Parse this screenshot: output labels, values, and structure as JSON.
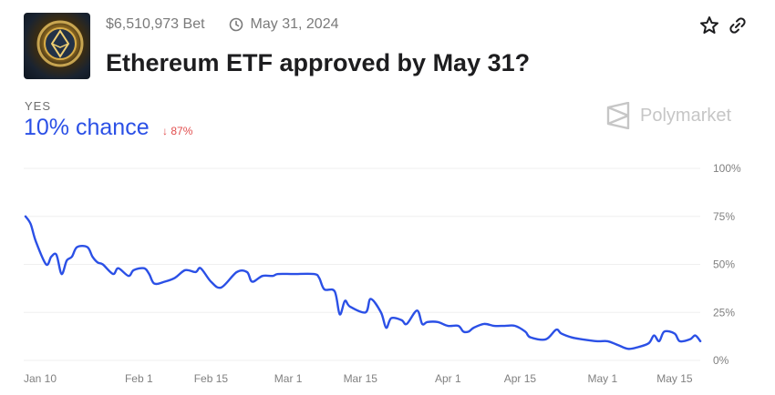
{
  "header": {
    "volume": "$6,510,973 Bet",
    "end_date": "May 31, 2024",
    "title": "Ethereum ETF approved by May 31?",
    "icons": {
      "clock": "clock-icon",
      "star": "star-icon",
      "link": "link-icon"
    }
  },
  "outcome": {
    "label": "YES",
    "chance": "10% chance",
    "change": "87%",
    "change_direction": "down",
    "change_color": "#e14d4d"
  },
  "brand": {
    "name": "Polymarket"
  },
  "colors": {
    "line": "#2b50e6",
    "grid": "#efefef",
    "axis_text": "#808080"
  },
  "chart_data": {
    "type": "line",
    "title": "",
    "xlabel": "",
    "ylabel": "",
    "ylim": [
      0,
      100
    ],
    "y_ticks": [
      "100%",
      "75%",
      "50%",
      "25%",
      "0%"
    ],
    "y_tick_values": [
      100,
      75,
      50,
      25,
      0
    ],
    "x_ticks": [
      "Jan 10",
      "Feb 1",
      "Feb 15",
      "Mar 1",
      "Mar 15",
      "Apr 1",
      "Apr 15",
      "May 1",
      "May 15"
    ],
    "x_tick_dates": [
      "2024-01-10",
      "2024-02-01",
      "2024-02-15",
      "2024-03-01",
      "2024-03-15",
      "2024-04-01",
      "2024-04-15",
      "2024-05-01",
      "2024-05-15"
    ],
    "grid": true,
    "y_axis_position": "right",
    "series": [
      {
        "x": [
          "2024-01-10",
          "2024-01-11",
          "2024-01-12",
          "2024-01-14",
          "2024-01-15",
          "2024-01-16",
          "2024-01-17",
          "2024-01-18",
          "2024-01-19",
          "2024-01-20",
          "2024-01-22",
          "2024-01-23",
          "2024-01-24",
          "2024-01-25",
          "2024-01-27",
          "2024-01-28",
          "2024-01-30",
          "2024-01-31",
          "2024-02-02",
          "2024-02-03",
          "2024-02-04",
          "2024-02-06",
          "2024-02-08",
          "2024-02-10",
          "2024-02-12",
          "2024-02-13",
          "2024-02-15",
          "2024-02-17",
          "2024-02-20",
          "2024-02-22",
          "2024-02-23",
          "2024-02-25",
          "2024-02-27",
          "2024-02-28",
          "2024-03-02",
          "2024-03-06",
          "2024-03-07",
          "2024-03-08",
          "2024-03-10",
          "2024-03-11",
          "2024-03-12",
          "2024-03-13",
          "2024-03-16",
          "2024-03-17",
          "2024-03-19",
          "2024-03-20",
          "2024-03-21",
          "2024-03-23",
          "2024-03-24",
          "2024-03-26",
          "2024-03-27",
          "2024-03-28",
          "2024-03-30",
          "2024-04-01",
          "2024-04-03",
          "2024-04-04",
          "2024-04-05",
          "2024-04-06",
          "2024-04-08",
          "2024-04-10",
          "2024-04-12",
          "2024-04-14",
          "2024-04-16",
          "2024-04-17",
          "2024-04-20",
          "2024-04-22",
          "2024-04-23",
          "2024-04-25",
          "2024-04-27",
          "2024-04-30",
          "2024-05-02",
          "2024-05-04",
          "2024-05-06",
          "2024-05-08",
          "2024-05-10",
          "2024-05-11",
          "2024-05-12",
          "2024-05-13",
          "2024-05-15",
          "2024-05-16",
          "2024-05-18",
          "2024-05-19",
          "2024-05-20"
        ],
        "values": [
          75,
          71,
          62,
          50,
          54,
          55,
          45,
          52,
          54,
          59,
          59,
          54,
          51,
          50,
          45,
          48,
          44,
          47,
          48,
          45,
          40,
          41,
          43,
          47,
          46,
          48,
          41,
          38,
          46,
          46,
          41,
          44,
          44,
          45,
          45,
          45,
          43,
          37,
          36,
          24,
          31,
          28,
          25,
          32,
          25,
          17,
          22,
          21,
          19,
          26,
          19,
          20,
          20,
          18,
          18,
          15,
          15,
          17,
          19,
          18,
          18,
          18,
          15,
          12,
          11,
          16,
          14,
          12,
          11,
          10,
          10,
          8,
          6,
          7,
          9,
          13,
          10,
          15,
          14,
          10,
          11,
          13,
          10
        ]
      }
    ]
  }
}
